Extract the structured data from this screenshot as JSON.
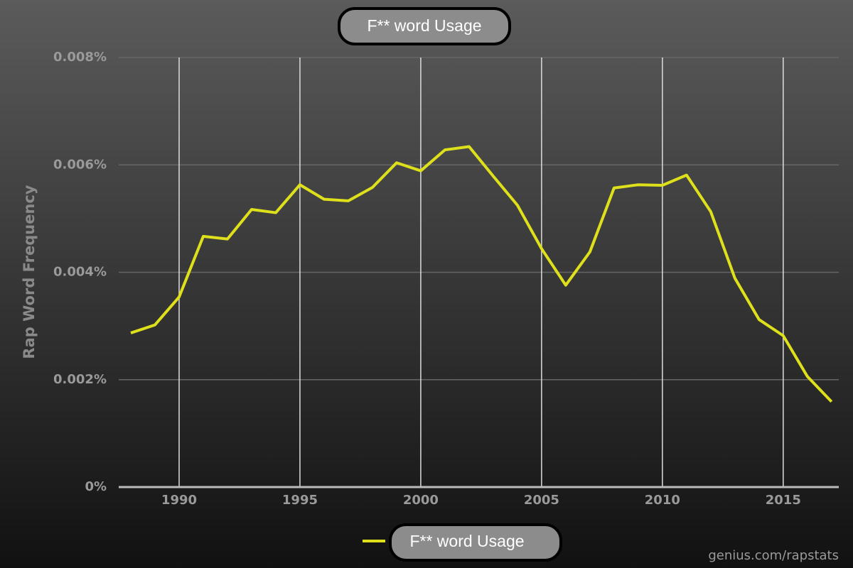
{
  "chart_data": {
    "type": "line",
    "title": "F** word Usage",
    "y_label": "Rap Word Frequency",
    "source": "genius.com/rapstats",
    "x": [
      1988,
      1989,
      1990,
      1991,
      1992,
      1993,
      1994,
      1995,
      1996,
      1997,
      1998,
      1999,
      2000,
      2001,
      2002,
      2003,
      2004,
      2005,
      2006,
      2007,
      2008,
      2009,
      2010,
      2011,
      2012,
      2013,
      2014,
      2015,
      2016,
      2017
    ],
    "series": [
      {
        "name": "F** word Usage",
        "color": "#dde01a",
        "values": [
          0.00287,
          0.00302,
          0.00354,
          0.00467,
          0.00462,
          0.00517,
          0.00511,
          0.00563,
          0.00536,
          0.00533,
          0.00558,
          0.00604,
          0.00589,
          0.00628,
          0.00634,
          0.00579,
          0.00525,
          0.00444,
          0.00376,
          0.00438,
          0.00557,
          0.00563,
          0.00562,
          0.00581,
          0.00513,
          0.00389,
          0.00312,
          0.00282,
          0.00206,
          0.00159
        ]
      }
    ],
    "xlim": [
      1987.5,
      2017.3
    ],
    "xticks": [
      1990,
      1995,
      2000,
      2005,
      2010,
      2015
    ],
    "ylim": [
      0,
      0.008
    ],
    "yticks": [
      {
        "value": 0,
        "label": "0%"
      },
      {
        "value": 0.002,
        "label": "0.002%"
      },
      {
        "value": 0.004,
        "label": "0.004%"
      },
      {
        "value": 0.006,
        "label": "0.006%"
      },
      {
        "value": 0.008,
        "label": "0.008%"
      }
    ],
    "grid": true
  }
}
